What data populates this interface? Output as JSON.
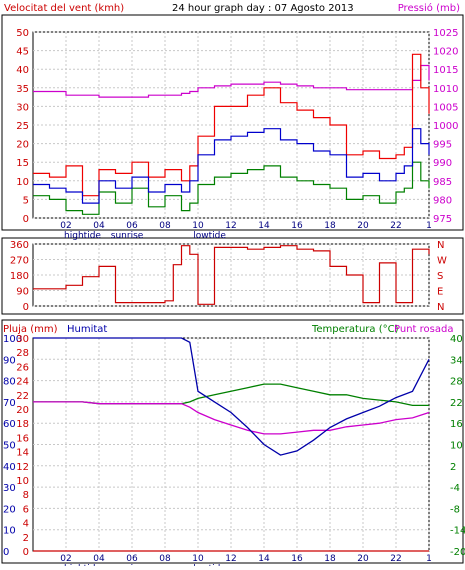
{
  "colors": {
    "wind": "#e00000",
    "gust": "#ee0000",
    "avg": "#0000cc",
    "min": "#008000",
    "pressure": "#cc00cc",
    "direction": "#cc0000",
    "rain": "#cc0000",
    "humidity": "#0000aa",
    "temperature": "#008000",
    "dewpoint": "#cc00cc",
    "grid": "#c8c8c8",
    "frame": "#000000"
  },
  "chart_data": [
    {
      "type": "line",
      "title": "24 hour graph day : 07 Agosto 2013",
      "ylabel_left": "Velocitat del vent (kmh)",
      "ylabel_right": "Pressió (mb)",
      "ylim_left": [
        0,
        50
      ],
      "ylim_right": [
        975,
        1025
      ],
      "yticks_left": [
        "0",
        "5",
        "10",
        "15",
        "20",
        "25",
        "30",
        "35",
        "40",
        "45",
        "50"
      ],
      "yticks_right": [
        "975",
        "980",
        "985",
        "990",
        "995",
        "1000",
        "1005",
        "1010",
        "1015",
        "1020",
        "1025"
      ],
      "xticks": [
        "02",
        "04",
        "06",
        "08",
        "10",
        "12",
        "14",
        "16",
        "18",
        "20",
        "22",
        "1"
      ],
      "x_annotations": [
        "hightide",
        "sunrise",
        "lowtide"
      ],
      "x_hours": [
        0,
        1,
        2,
        3,
        4,
        5,
        6,
        7,
        8,
        9,
        9.5,
        10,
        11,
        12,
        13,
        14,
        15,
        16,
        17,
        18,
        19,
        20,
        21,
        22,
        22.5,
        23,
        23.5,
        24
      ],
      "series": [
        {
          "key": "gust",
          "values": [
            12,
            11,
            14,
            6,
            13,
            12,
            15,
            11,
            13,
            10,
            14,
            22,
            30,
            30,
            33,
            35,
            31,
            29,
            27,
            25,
            17,
            18,
            16,
            17,
            19,
            44,
            35,
            28
          ]
        },
        {
          "key": "avg",
          "values": [
            9,
            8,
            7,
            4,
            10,
            8,
            11,
            7,
            9,
            7,
            10,
            17,
            21,
            22,
            23,
            24,
            21,
            20,
            18,
            17,
            11,
            12,
            10,
            12,
            14,
            24,
            20,
            17
          ]
        },
        {
          "key": "min",
          "values": [
            6,
            5,
            2,
            1,
            7,
            4,
            8,
            3,
            6,
            2,
            4,
            9,
            11,
            12,
            13,
            14,
            11,
            10,
            9,
            8,
            5,
            6,
            4,
            7,
            8,
            15,
            10,
            8
          ]
        },
        {
          "key": "pressure",
          "values": [
            1009,
            1009,
            1008,
            1008,
            1007.5,
            1007.5,
            1007.5,
            1008,
            1008,
            1008.5,
            1009,
            1010,
            1010.5,
            1011,
            1011,
            1011.5,
            1011,
            1010.5,
            1010,
            1010,
            1009.5,
            1009.5,
            1009.5,
            1009.5,
            1009.5,
            1012,
            1016,
            1012
          ]
        }
      ]
    },
    {
      "type": "line",
      "ylabel_left": "",
      "ylim_left": [
        0,
        360
      ],
      "yticks_left": [
        "0",
        "90",
        "180",
        "270",
        "360"
      ],
      "compass_labels": [
        "N",
        "W",
        "S",
        "E",
        "N"
      ],
      "xticks": [],
      "x_hours": [
        0,
        1,
        2,
        3,
        4,
        5,
        6,
        7,
        8,
        8.5,
        9,
        9.5,
        10,
        11,
        12,
        13,
        14,
        15,
        16,
        17,
        18,
        19,
        20,
        21,
        22,
        23,
        24
      ],
      "series": [
        {
          "key": "direction",
          "values": [
            100,
            100,
            120,
            170,
            230,
            20,
            20,
            20,
            30,
            240,
            350,
            300,
            10,
            340,
            340,
            330,
            340,
            350,
            330,
            320,
            230,
            180,
            20,
            250,
            20,
            330,
            300
          ]
        }
      ]
    },
    {
      "type": "line",
      "ylabel_left": "Pluja (mm)",
      "ylabel_left2": "Humitat",
      "ylabel_right": "Temperatura (°C)",
      "ylabel_right2": "Punt rosada",
      "ylim_left": [
        0,
        30
      ],
      "ylim_left2": [
        0,
        100
      ],
      "ylim_right": [
        -20,
        40
      ],
      "yticks_left": [
        "0",
        "2",
        "4",
        "6",
        "8",
        "10",
        "12",
        "14",
        "16",
        "18",
        "20",
        "22",
        "24",
        "26",
        "28",
        "30"
      ],
      "yticks_left2": [
        "0",
        "10",
        "20",
        "30",
        "40",
        "50",
        "60",
        "70",
        "80",
        "90",
        "100"
      ],
      "yticks_right": [
        "-20",
        "-14",
        "-8",
        "-4",
        "2",
        "10",
        "16",
        "22",
        "28",
        "34",
        "40"
      ],
      "xticks": [
        "02",
        "04",
        "06",
        "08",
        "10",
        "12",
        "14",
        "16",
        "18",
        "20",
        "22",
        "1"
      ],
      "x_annotations": [
        "hightide",
        "sunrise",
        "lowtide"
      ],
      "x_hours": [
        0,
        1,
        2,
        3,
        4,
        5,
        6,
        7,
        8,
        9,
        9.5,
        10,
        11,
        12,
        13,
        14,
        15,
        16,
        17,
        18,
        19,
        20,
        21,
        22,
        23,
        24
      ],
      "series": [
        {
          "key": "humidity",
          "values": [
            100,
            100,
            100,
            100,
            100,
            100,
            100,
            100,
            100,
            100,
            98,
            75,
            70,
            65,
            58,
            50,
            45,
            47,
            52,
            58,
            62,
            65,
            68,
            72,
            75,
            90
          ]
        },
        {
          "key": "temperature",
          "values": [
            22,
            22,
            22,
            22,
            21.5,
            21.5,
            21.5,
            21.5,
            21.5,
            21.5,
            22,
            23,
            24,
            25,
            26,
            27,
            27,
            26,
            25,
            24,
            24,
            23,
            22.5,
            22,
            21,
            21
          ]
        },
        {
          "key": "dewpoint",
          "values": [
            22,
            22,
            22,
            22,
            21.5,
            21.5,
            21.5,
            21.5,
            21.5,
            21.5,
            20.5,
            19,
            17,
            15.5,
            14,
            13,
            13,
            13.5,
            14,
            14,
            15,
            15.5,
            16,
            17,
            17.5,
            19
          ]
        },
        {
          "key": "rain",
          "values": [
            0,
            0,
            0,
            0,
            0,
            0,
            0,
            0,
            0,
            0,
            0,
            0,
            0,
            0,
            0,
            0,
            0,
            0,
            0,
            0,
            0,
            0,
            0,
            0,
            0,
            0
          ]
        }
      ]
    }
  ]
}
